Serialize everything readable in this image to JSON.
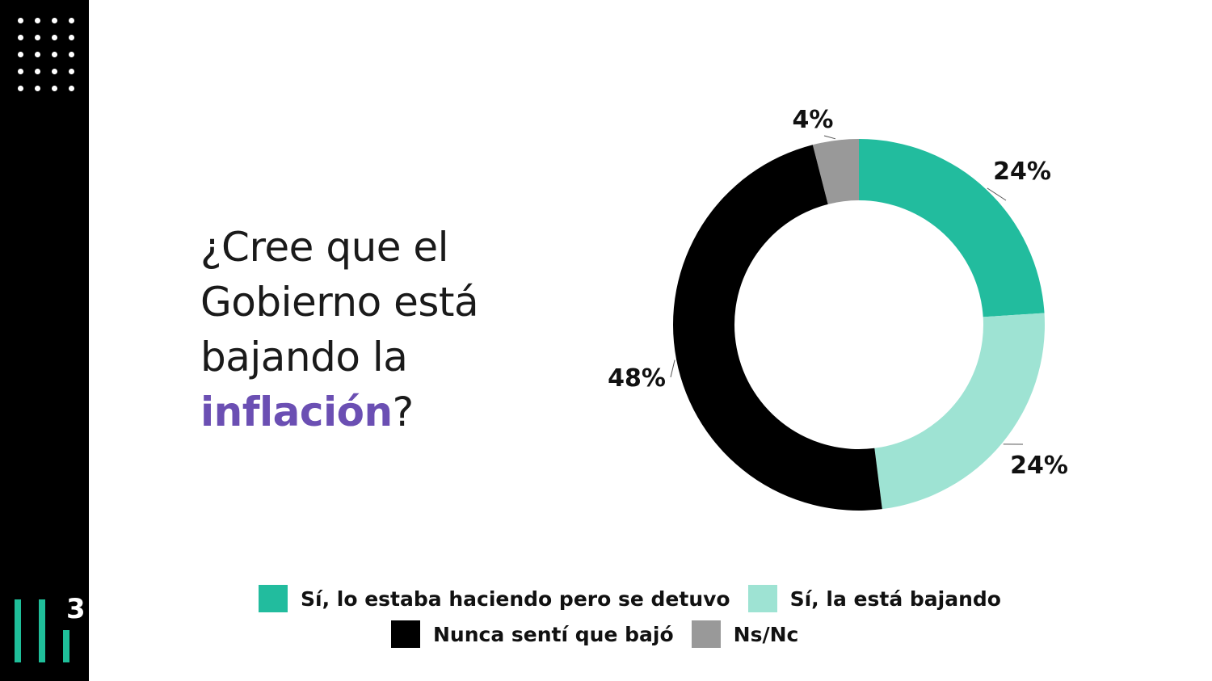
{
  "question": {
    "lines": [
      "¿Cree que el",
      "Gobierno está",
      "bajando la"
    ],
    "highlight": "inflación",
    "suffix": "?"
  },
  "logo": {
    "number": "3"
  },
  "colors": {
    "sidebar": "#000000",
    "accent": "#6b4fb3",
    "brand": "#1fbf9a"
  },
  "chart_data": {
    "type": "pie",
    "variant": "donut",
    "title": "",
    "categories": [
      "Sí, lo estaba haciendo pero se detuvo",
      "Sí, la está bajando",
      "Nunca sentí que bajó",
      "Ns/Nc"
    ],
    "values": [
      24,
      24,
      48,
      4
    ],
    "data_labels": [
      "24%",
      "24%",
      "48%",
      "4%"
    ],
    "colors": [
      "#22bc9e",
      "#9ee3d3",
      "#000000",
      "#999999"
    ],
    "legend_position": "bottom"
  }
}
